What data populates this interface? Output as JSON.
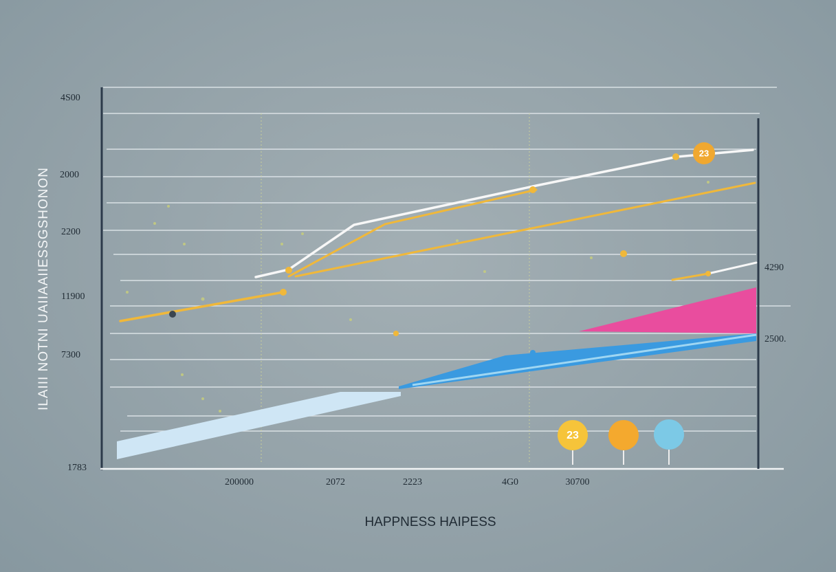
{
  "y_axis_title": "ILAIII NOTNI UAIIAAIIESSGSHONON",
  "y_labels": [
    "4S00",
    "2000",
    "2200",
    "11900",
    "7300",
    "1783"
  ],
  "x_labels": [
    "200000",
    "2072",
    "2223",
    "4G0",
    "30700"
  ],
  "right_labels": [
    "4290",
    "2500."
  ],
  "x_axis_title": "HAPPNESS HAIPESS",
  "badges": [
    "23",
    "23"
  ]
}
